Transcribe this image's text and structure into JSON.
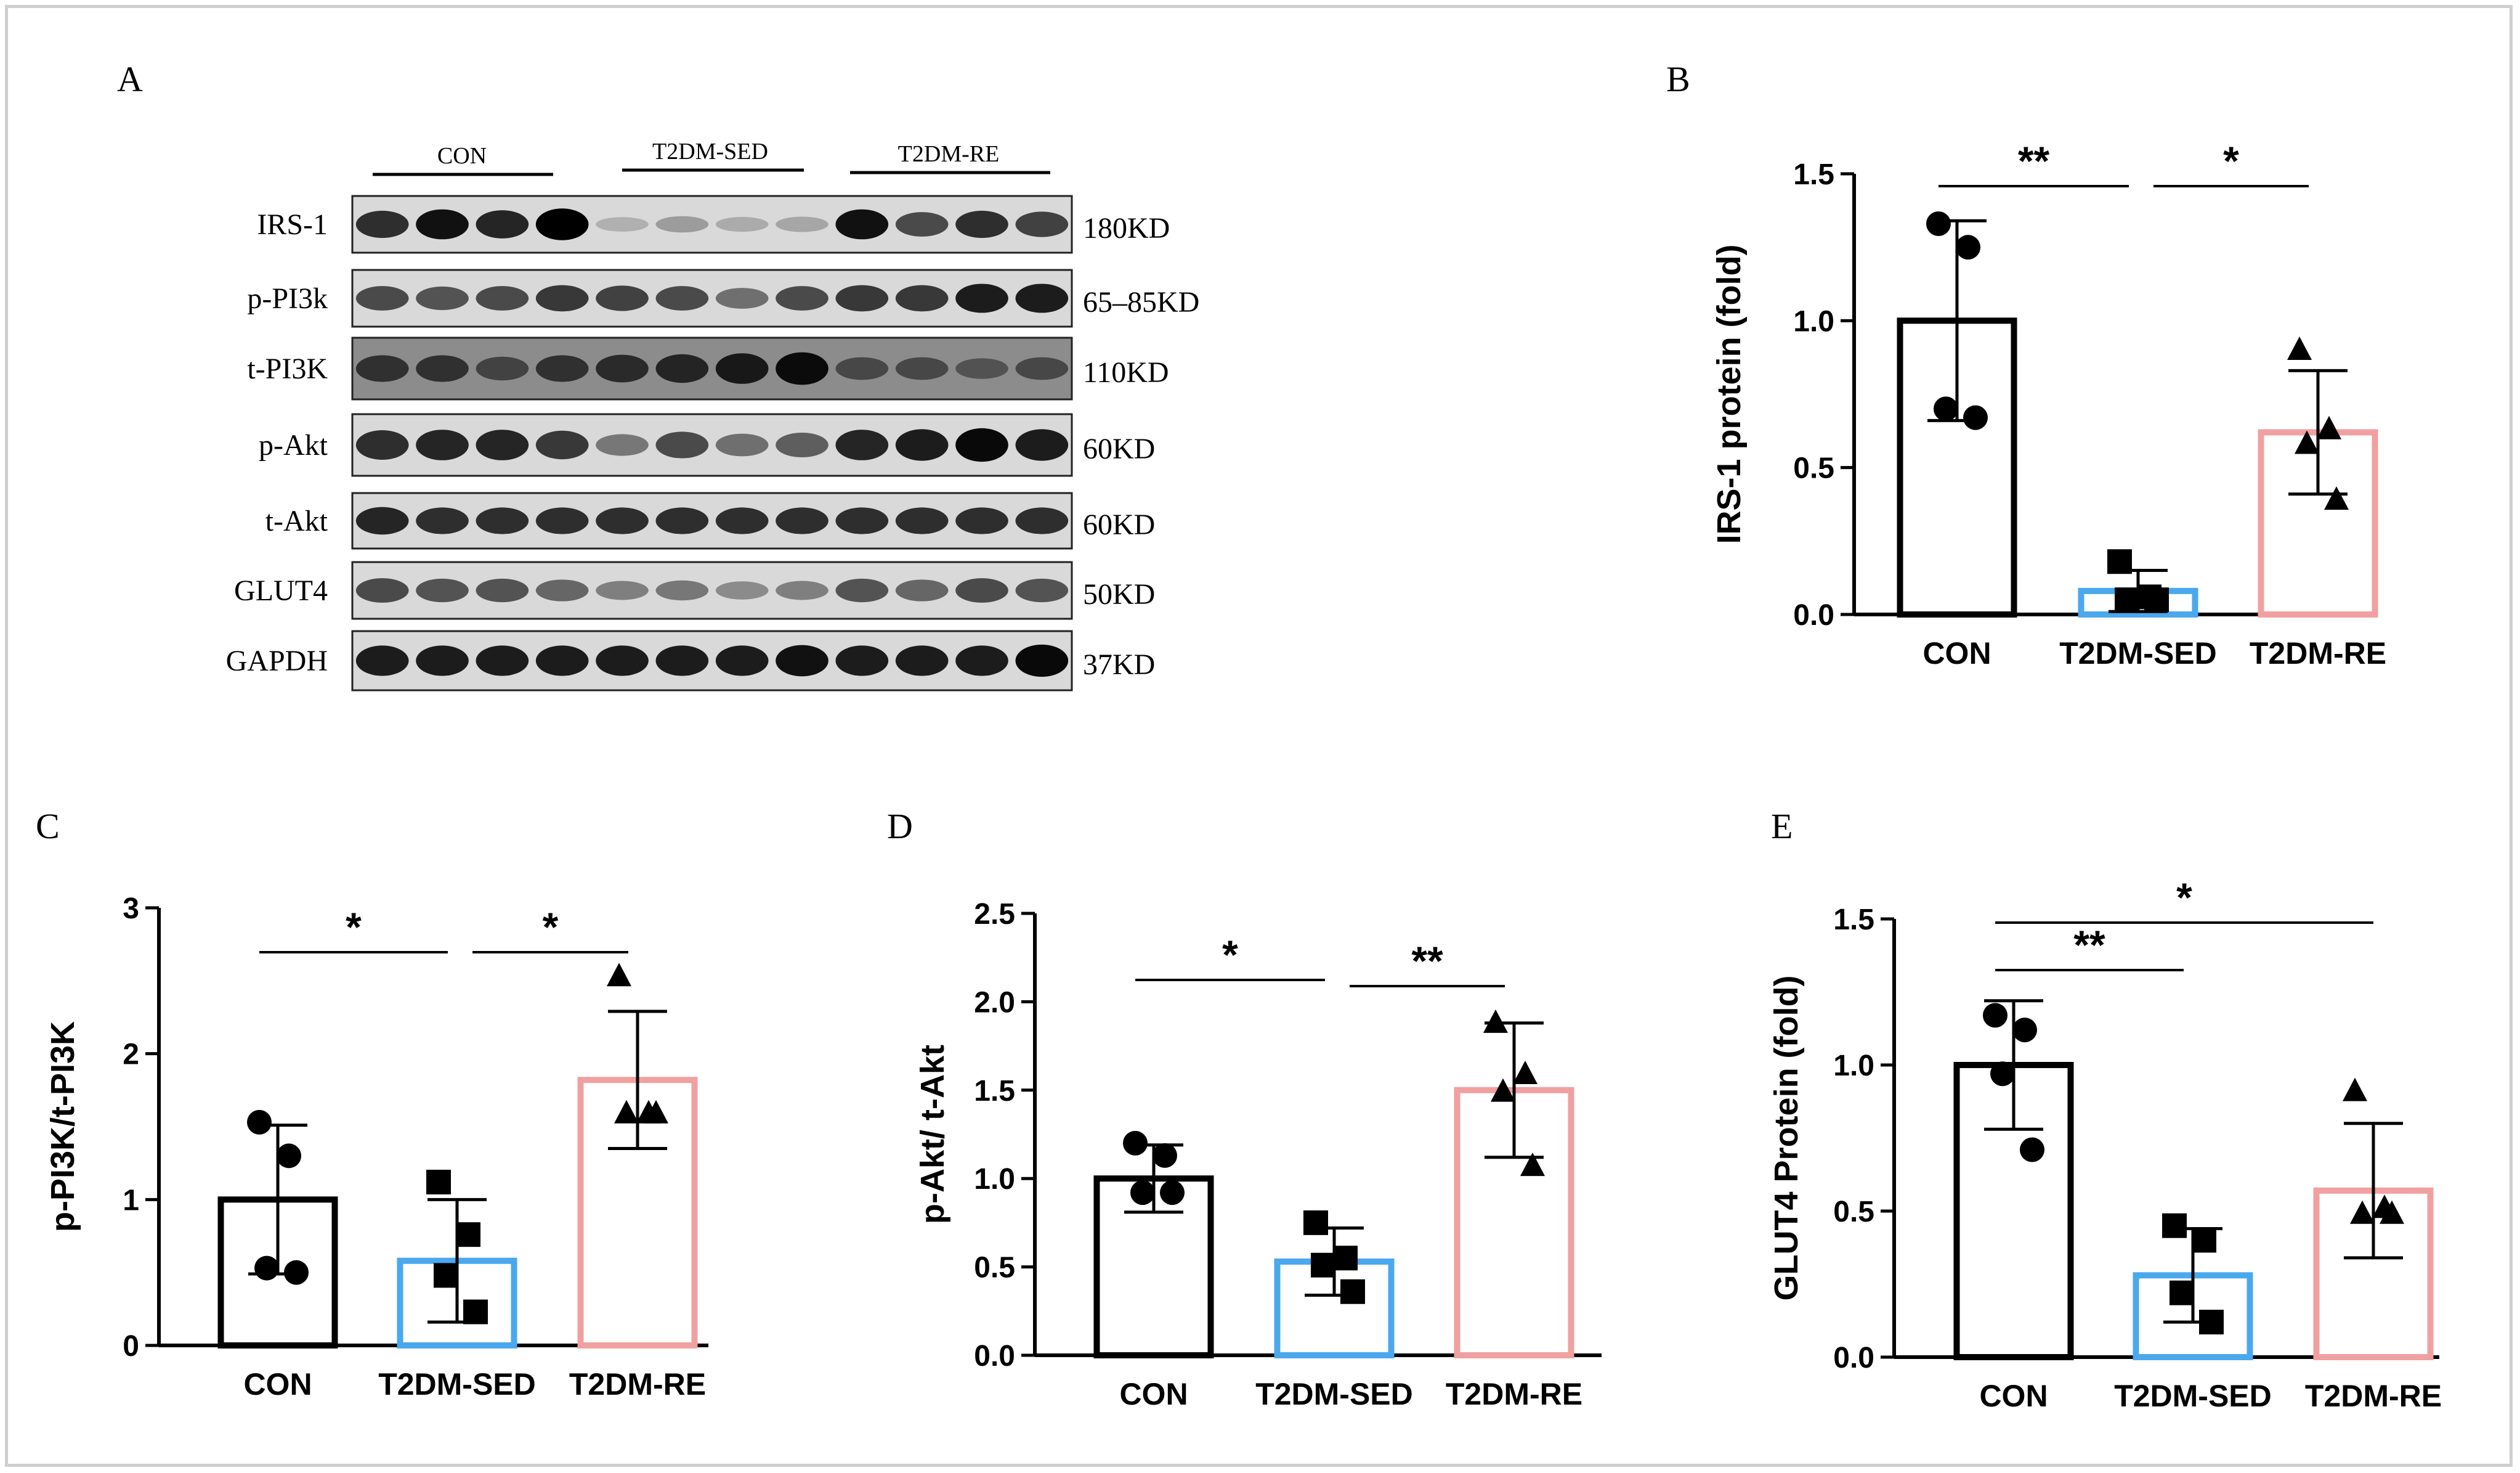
{
  "figure": {
    "panel_labels": [
      "A",
      "B",
      "C",
      "D",
      "E"
    ],
    "blot": {
      "groups": [
        "CON",
        "T2DM-SED",
        "T2DM-RE"
      ],
      "bands": [
        {
          "protein": "IRS-1",
          "size": "180KD"
        },
        {
          "protein": "p-PI3k",
          "size": "65–85KD"
        },
        {
          "protein": "t-PI3K",
          "size": "110KD"
        },
        {
          "protein": "p-Akt",
          "size": "60KD"
        },
        {
          "protein": "t-Akt",
          "size": "60KD"
        },
        {
          "protein": "GLUT4",
          "size": "50KD"
        },
        {
          "protein": "GAPDH",
          "size": "37KD"
        }
      ]
    }
  },
  "colors": {
    "CON": "#000000",
    "T2DM-SED": "#4aa8ee",
    "T2DM-RE": "#f0a0a0",
    "frame": "#cfcfcf"
  },
  "chart_data": [
    {
      "panel": "B",
      "type": "bar",
      "categories": [
        "CON",
        "T2DM-SED",
        "T2DM-RE"
      ],
      "ylabel": "IRS-1 protein (fold)",
      "ylim": [
        0,
        1.5
      ],
      "yticks": [
        0.0,
        0.5,
        1.0,
        1.5
      ],
      "tick_labels": [
        "0.0",
        "0.5",
        "1.0",
        "1.5"
      ],
      "means": [
        1.0,
        0.08,
        0.62
      ],
      "sd": [
        0.34,
        0.07,
        0.21
      ],
      "points": [
        [
          1.33,
          1.25,
          0.7,
          0.67
        ],
        [
          0.18,
          0.06,
          0.05,
          0.05
        ],
        [
          0.9,
          0.63,
          0.58,
          0.39
        ]
      ],
      "markers": [
        "circle",
        "square",
        "triangle"
      ],
      "significance": [
        {
          "from": 0,
          "to": 1,
          "label": "**"
        },
        {
          "from": 1,
          "to": 2,
          "label": "*"
        }
      ]
    },
    {
      "panel": "C",
      "type": "bar",
      "categories": [
        "CON",
        "T2DM-SED",
        "T2DM-RE"
      ],
      "ylabel": "p-PI3K/t-PI3K",
      "ylim": [
        0,
        3
      ],
      "yticks": [
        0,
        1,
        2,
        3
      ],
      "tick_labels": [
        "0",
        "1",
        "2",
        "3"
      ],
      "means": [
        1.0,
        0.58,
        1.82
      ],
      "sd": [
        0.51,
        0.42,
        0.47
      ],
      "points": [
        [
          1.53,
          1.3,
          0.53,
          0.5
        ],
        [
          1.12,
          0.76,
          0.48,
          0.23
        ],
        [
          2.53,
          1.59,
          1.59,
          1.59
        ]
      ],
      "markers": [
        "circle",
        "square",
        "triangle"
      ],
      "significance": [
        {
          "from": 0,
          "to": 1,
          "label": "*"
        },
        {
          "from": 1,
          "to": 2,
          "label": "*"
        }
      ]
    },
    {
      "panel": "D",
      "type": "bar",
      "categories": [
        "CON",
        "T2DM-SED",
        "T2DM-RE"
      ],
      "ylabel": "p-Akt/ t-Akt",
      "ylim": [
        0,
        2.5
      ],
      "yticks": [
        0.0,
        0.5,
        1.0,
        1.5,
        2.0,
        2.5
      ],
      "tick_labels": [
        "0.0",
        "0.5",
        "1.0",
        "1.5",
        "2.0",
        "2.5"
      ],
      "means": [
        1.0,
        0.53,
        1.5
      ],
      "sd": [
        0.19,
        0.19,
        0.38
      ],
      "points": [
        [
          1.2,
          1.13,
          0.92,
          0.92
        ],
        [
          0.75,
          0.55,
          0.51,
          0.36
        ],
        [
          1.88,
          1.59,
          1.49,
          1.07
        ]
      ],
      "markers": [
        "circle",
        "square",
        "triangle"
      ],
      "significance": [
        {
          "from": 0,
          "to": 1,
          "label": "*"
        },
        {
          "from": 1,
          "to": 2,
          "label": "**"
        }
      ]
    },
    {
      "panel": "E",
      "type": "bar",
      "categories": [
        "CON",
        "T2DM-SED",
        "T2DM-RE"
      ],
      "ylabel": "GLUT4  Protein (fold)",
      "ylim": [
        0,
        1.5
      ],
      "yticks": [
        0.0,
        0.5,
        1.0,
        1.5
      ],
      "tick_labels": [
        "0.0",
        "0.5",
        "1.0",
        "1.5"
      ],
      "means": [
        1.0,
        0.28,
        0.57
      ],
      "sd": [
        0.22,
        0.16,
        0.23
      ],
      "points": [
        [
          1.17,
          1.12,
          0.97,
          0.71
        ],
        [
          0.45,
          0.4,
          0.22,
          0.12
        ],
        [
          0.91,
          0.51,
          0.49,
          0.49
        ]
      ],
      "markers": [
        "circle",
        "square",
        "triangle"
      ],
      "significance": [
        {
          "from": 0,
          "to": 1,
          "label": "**"
        },
        {
          "from": 0,
          "to": 2,
          "label": "*"
        }
      ]
    }
  ]
}
